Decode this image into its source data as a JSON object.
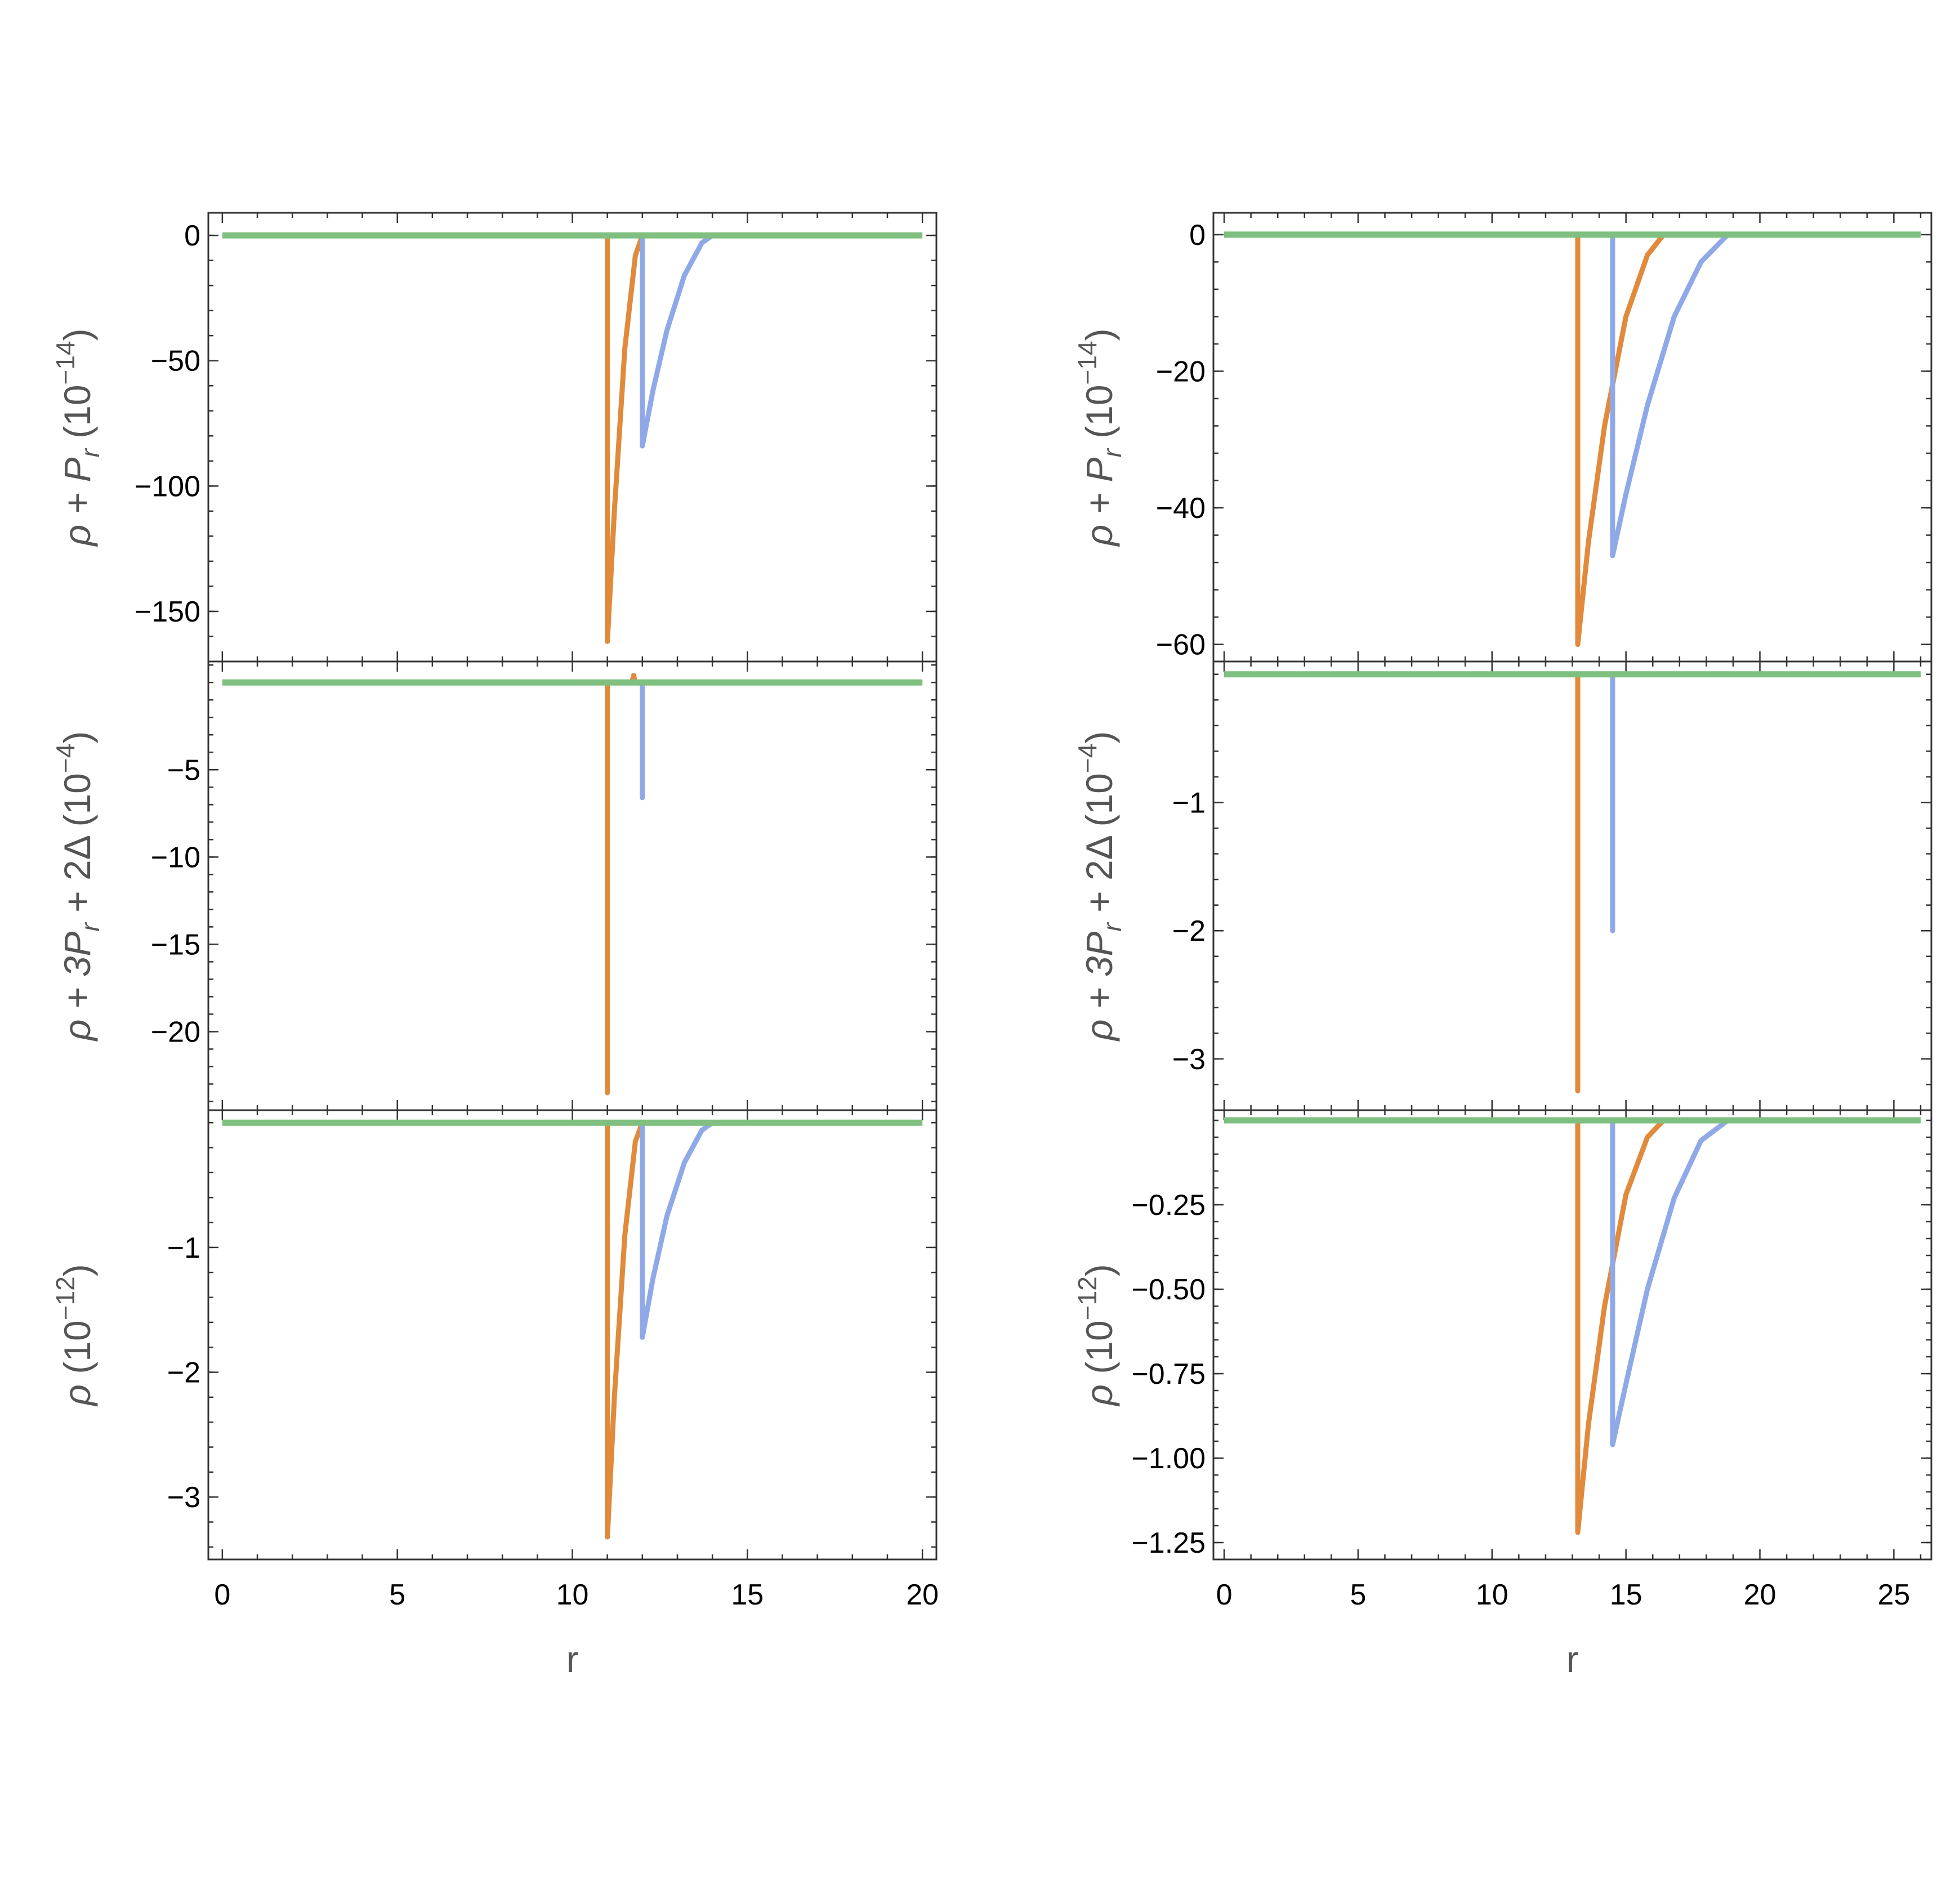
{
  "chart_data": [
    {
      "type": "line",
      "column": "left",
      "panel": "top",
      "ylabel": "ρ + P_r (10^{-14})",
      "ylabel_parts": {
        "main": "ρ + P",
        "sub": "r",
        "rest": " (10",
        "exp": "−14",
        "close": ")"
      },
      "ylim": [
        -170,
        9
      ],
      "yticks": [
        0,
        -50,
        -100,
        -150
      ],
      "ytick_labels": [
        "0",
        "−50",
        "−100",
        "−150"
      ],
      "xlim": [
        -0.4,
        20.4
      ],
      "series": [
        {
          "color": "#e18a3c",
          "x": [
            0.0,
            11.0,
            11.0,
            11.2,
            11.5,
            11.8,
            12.0,
            20.0
          ],
          "y": [
            0,
            0,
            -162,
            -110,
            -45,
            -8,
            0,
            0
          ]
        },
        {
          "color": "#8fa9e8",
          "x": [
            0.0,
            12.0,
            12.0,
            12.3,
            12.7,
            13.2,
            13.7,
            14.0,
            20.0
          ],
          "y": [
            0,
            0,
            -84,
            -62,
            -38,
            -16,
            -3,
            0,
            0
          ]
        },
        {
          "color": "#7fbf7f",
          "x": [
            0.0,
            20.0
          ],
          "y": [
            0,
            0
          ]
        }
      ]
    },
    {
      "type": "line",
      "column": "left",
      "panel": "middle",
      "ylabel": "ρ + 3P_r + 2Δ (10^{-4})",
      "ylabel_parts": {
        "main": "ρ + 3P",
        "sub": "r",
        "rest": " + 2Δ  (10",
        "exp": "−4",
        "close": ")"
      },
      "ylim": [
        -24.5,
        1.2
      ],
      "yticks": [
        -5,
        -10,
        -15,
        -20
      ],
      "ytick_labels": [
        "−5",
        "−10",
        "−15",
        "−20"
      ],
      "xlim": [
        -0.4,
        20.4
      ],
      "series": [
        {
          "color": "#e18a3c",
          "x": [
            0.0,
            11.0,
            11.0,
            11.0,
            11.7,
            11.75,
            11.8,
            20.0
          ],
          "y": [
            0,
            0,
            -23.5,
            0,
            0,
            0.4,
            0,
            0
          ]
        },
        {
          "color": "#8fa9e8",
          "x": [
            0.0,
            12.0,
            12.0,
            12.0,
            20.0
          ],
          "y": [
            0,
            0,
            -6.6,
            0,
            0
          ]
        },
        {
          "color": "#7fbf7f",
          "x": [
            0.0,
            20.0
          ],
          "y": [
            0,
            0
          ]
        }
      ]
    },
    {
      "type": "line",
      "column": "left",
      "panel": "bottom",
      "ylabel": "ρ (10^{-12})",
      "ylabel_parts": {
        "main": "ρ",
        "sub": "",
        "rest": " (10",
        "exp": "−12",
        "close": ")"
      },
      "ylim": [
        -3.5,
        0.1
      ],
      "yticks": [
        -1,
        -2,
        -3
      ],
      "ytick_labels": [
        "−1",
        "−2",
        "−3"
      ],
      "xlim": [
        -0.4,
        20.4
      ],
      "xticks": [
        0,
        5,
        10,
        15,
        20
      ],
      "xtick_labels": [
        "0",
        "5",
        "10",
        "15",
        "20"
      ],
      "xlabel": "r",
      "series": [
        {
          "color": "#e18a3c",
          "x": [
            0.0,
            11.0,
            11.0,
            11.2,
            11.5,
            11.8,
            12.0,
            20.0
          ],
          "y": [
            0,
            0,
            -3.32,
            -2.2,
            -0.9,
            -0.15,
            0,
            0
          ]
        },
        {
          "color": "#8fa9e8",
          "x": [
            0.0,
            12.0,
            12.0,
            12.3,
            12.7,
            13.2,
            13.7,
            14.0,
            20.0
          ],
          "y": [
            0,
            0,
            -1.72,
            -1.25,
            -0.75,
            -0.32,
            -0.06,
            0,
            0
          ]
        },
        {
          "color": "#7fbf7f",
          "x": [
            0.0,
            20.0
          ],
          "y": [
            0,
            0
          ]
        }
      ]
    },
    {
      "type": "line",
      "column": "right",
      "panel": "top",
      "ylabel": "ρ + P_r (10^{-14})",
      "ylabel_parts": {
        "main": "ρ + P",
        "sub": "r",
        "rest": "  (10",
        "exp": "−14",
        "close": ")"
      },
      "ylim": [
        -62.5,
        3.2
      ],
      "yticks": [
        0,
        -20,
        -40,
        -60
      ],
      "ytick_labels": [
        "0",
        "−20",
        "−40",
        "−60"
      ],
      "xlim": [
        -0.4,
        26.4
      ],
      "series": [
        {
          "color": "#e18a3c",
          "x": [
            0.0,
            13.2,
            13.2,
            13.6,
            14.2,
            15.0,
            15.8,
            16.4,
            26.0
          ],
          "y": [
            0,
            0,
            -60,
            -45,
            -28,
            -12,
            -3,
            0,
            0
          ]
        },
        {
          "color": "#8fa9e8",
          "x": [
            0.0,
            14.5,
            14.5,
            15.0,
            15.8,
            16.8,
            17.8,
            18.8,
            26.0
          ],
          "y": [
            0,
            0,
            -47,
            -38,
            -25,
            -12,
            -4,
            0,
            0
          ]
        },
        {
          "color": "#7fbf7f",
          "x": [
            0.0,
            26.0
          ],
          "y": [
            0,
            0
          ]
        }
      ]
    },
    {
      "type": "line",
      "column": "right",
      "panel": "middle",
      "ylabel": "ρ + 3P_r + 2Δ (10^{-4})",
      "ylabel_parts": {
        "main": "ρ + 3P",
        "sub": "r",
        "rest": " + 2Δ  (10",
        "exp": "−4",
        "close": ")"
      },
      "ylim": [
        -3.4,
        0.1
      ],
      "yticks": [
        -1,
        -2,
        -3
      ],
      "ytick_labels": [
        "−1",
        "−2",
        "−3"
      ],
      "xlim": [
        -0.4,
        26.4
      ],
      "series": [
        {
          "color": "#e18a3c",
          "x": [
            0.0,
            13.2,
            13.2,
            13.2,
            26.0
          ],
          "y": [
            0,
            0,
            -3.25,
            0,
            0
          ]
        },
        {
          "color": "#8fa9e8",
          "x": [
            0.0,
            14.5,
            14.5,
            14.5,
            26.0
          ],
          "y": [
            0,
            0,
            -2.0,
            0,
            0
          ]
        },
        {
          "color": "#7fbf7f",
          "x": [
            0.0,
            26.0
          ],
          "y": [
            0,
            0
          ]
        }
      ]
    },
    {
      "type": "line",
      "column": "right",
      "panel": "bottom",
      "ylabel": "ρ (10^{-12})",
      "ylabel_parts": {
        "main": "ρ",
        "sub": "",
        "rest": " (10",
        "exp": "−12",
        "close": ")"
      },
      "ylim": [
        -1.3,
        0.03
      ],
      "yticks": [
        -0.25,
        -0.5,
        -0.75,
        -1.0,
        -1.25
      ],
      "ytick_labels": [
        "−0.25",
        "−0.50",
        "−0.75",
        "−1.00",
        "−1.25"
      ],
      "xlim": [
        -0.4,
        26.4
      ],
      "xticks": [
        0,
        5,
        10,
        15,
        20,
        25
      ],
      "xtick_labels": [
        "0",
        "5",
        "10",
        "15",
        "20",
        "25"
      ],
      "xlabel": "r",
      "series": [
        {
          "color": "#e18a3c",
          "x": [
            0.0,
            13.2,
            13.2,
            13.6,
            14.2,
            15.0,
            15.8,
            16.4,
            26.0
          ],
          "y": [
            0,
            0,
            -1.22,
            -0.9,
            -0.55,
            -0.22,
            -0.05,
            0,
            0
          ]
        },
        {
          "color": "#8fa9e8",
          "x": [
            0.0,
            14.5,
            14.5,
            15.0,
            15.8,
            16.8,
            17.8,
            18.8,
            26.0
          ],
          "y": [
            0,
            0,
            -0.96,
            -0.78,
            -0.5,
            -0.23,
            -0.06,
            0,
            0
          ]
        },
        {
          "color": "#7fbf7f",
          "x": [
            0.0,
            26.0
          ],
          "y": [
            0,
            0
          ]
        }
      ]
    }
  ]
}
